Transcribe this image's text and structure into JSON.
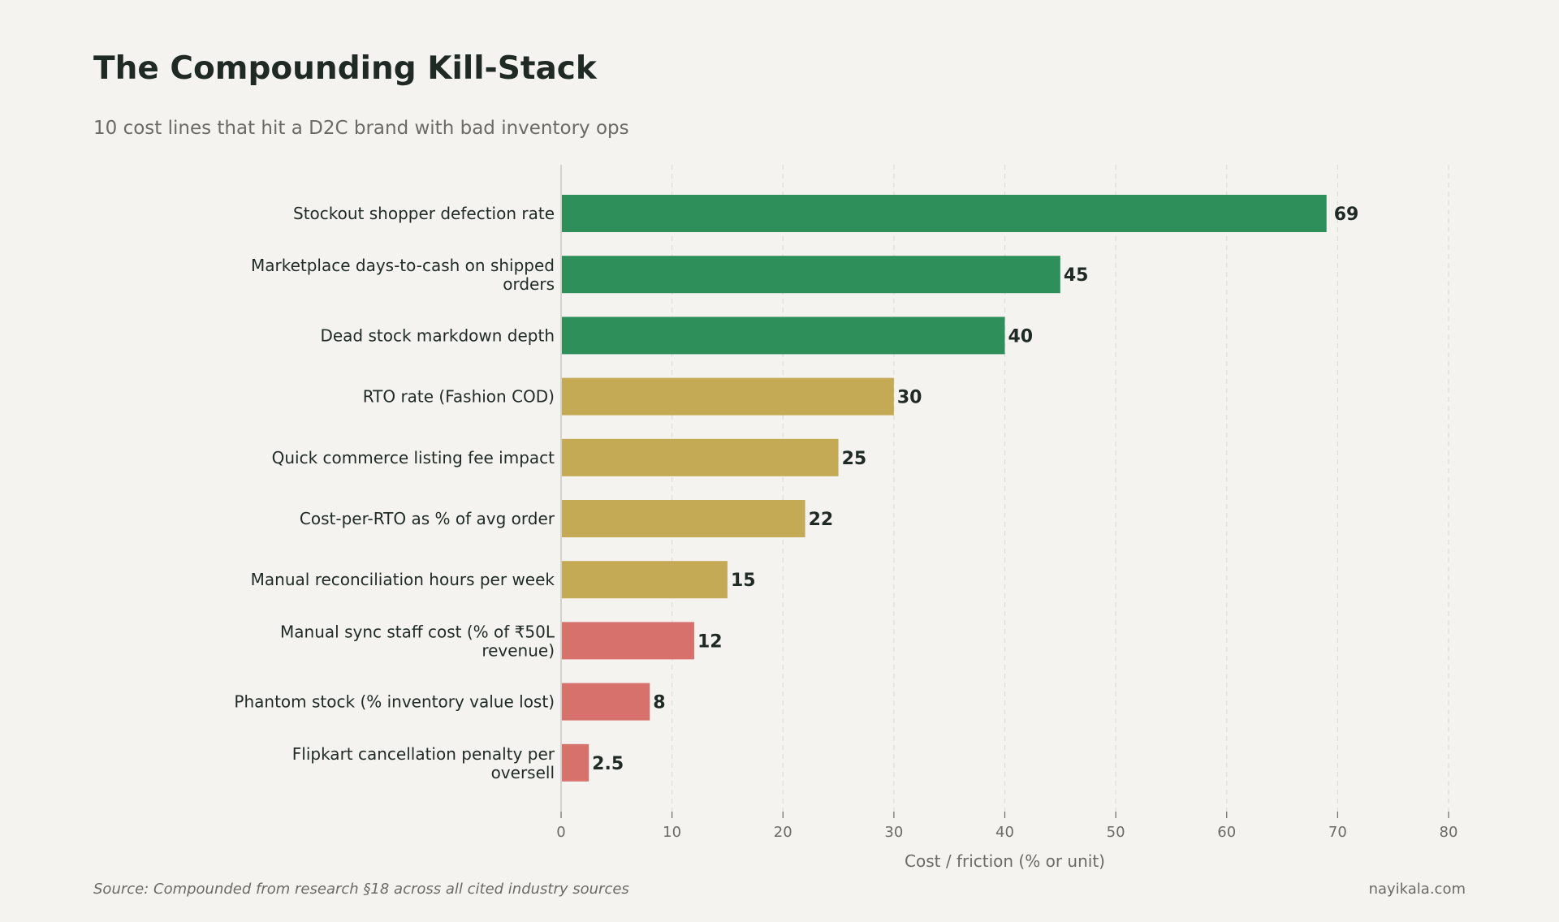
{
  "title": "The Compounding Kill-Stack",
  "subtitle": "10 cost lines that hit a D2C brand with bad inventory ops",
  "source": "Source: Compounded from research §18 across all cited industry sources",
  "brand": "nayikala.com",
  "colors": {
    "green": "#2e8f5b",
    "gold": "#c5aa55",
    "red": "#d6716b",
    "background": "#f4f3ef"
  },
  "chart_data": {
    "type": "bar",
    "orientation": "horizontal",
    "categories": [
      [
        "Stockout shopper defection rate"
      ],
      [
        "Marketplace days-to-cash on shipped",
        "orders"
      ],
      [
        "Dead stock markdown depth"
      ],
      [
        "RTO rate (Fashion COD)"
      ],
      [
        "Quick commerce listing fee impact"
      ],
      [
        "Cost-per-RTO as % of avg order"
      ],
      [
        "Manual reconciliation hours per week"
      ],
      [
        "Manual sync staff cost (% of ₹50L",
        "revenue)"
      ],
      [
        "Phantom stock (% inventory value lost)"
      ],
      [
        "Flipkart cancellation penalty per",
        "oversell"
      ]
    ],
    "values": [
      69,
      45,
      40,
      30,
      25,
      22,
      15,
      12,
      8,
      2.5
    ],
    "value_labels": [
      "69",
      "45",
      "40",
      "30",
      "25",
      "22",
      "15",
      "12",
      "8",
      "2.5"
    ],
    "bar_colors": [
      "green",
      "green",
      "green",
      "gold",
      "gold",
      "gold",
      "gold",
      "red",
      "red",
      "red"
    ],
    "xlabel": "Cost / friction (% or unit)",
    "ylabel": "",
    "xlim": [
      0,
      80
    ],
    "xticks": [
      "0",
      "10",
      "20",
      "30",
      "40",
      "50",
      "60",
      "70",
      "80"
    ],
    "grid": "vertical dashed"
  }
}
